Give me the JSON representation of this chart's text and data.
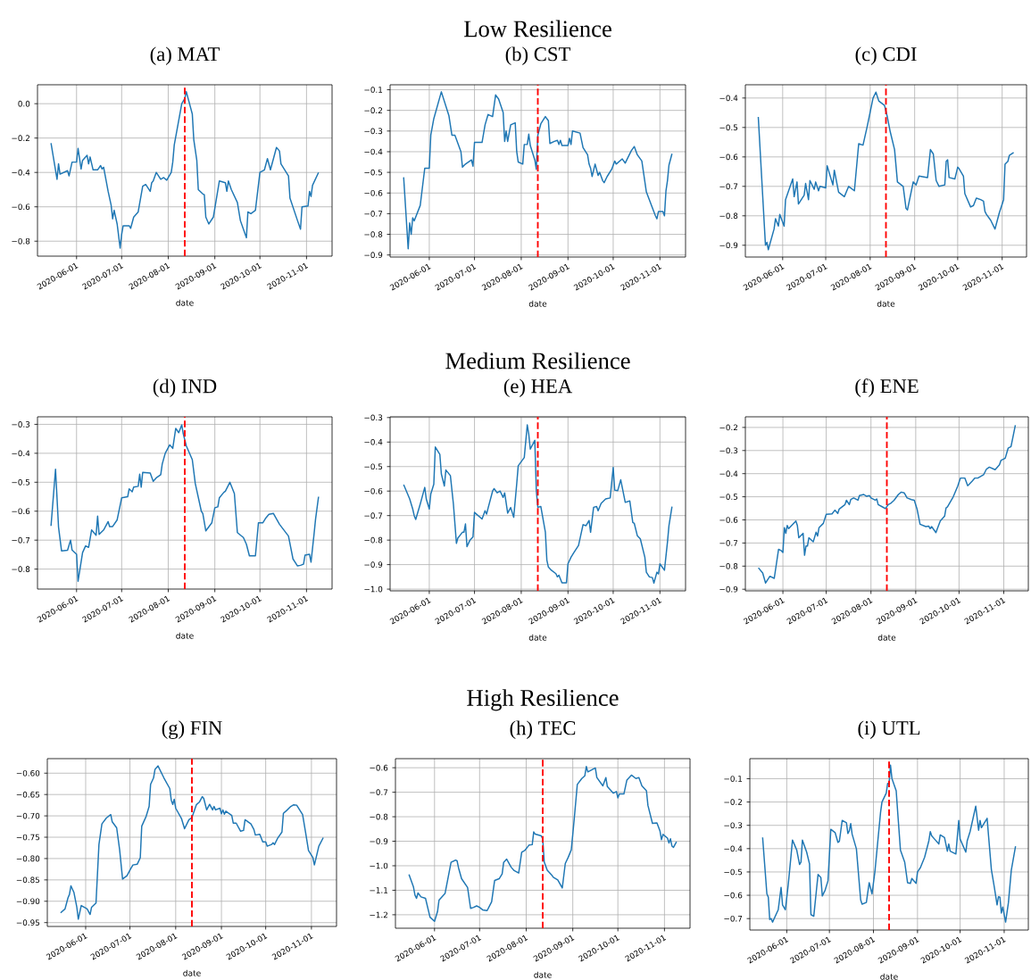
{
  "chart_data": [
    {
      "type": "line",
      "title": "(a) MAT",
      "xlabel": "date",
      "color": "#1f77b4",
      "grid": true,
      "xlim": [
        "2020-05-06",
        "2020-11-18"
      ],
      "ylim": [
        -0.887,
        0.11
      ],
      "xticks": [
        "2020-06-01",
        "2020-07-01",
        "2020-08-01",
        "2020-09-01",
        "2020-10-01",
        "2020-11-01"
      ],
      "yticks": [
        {
          "value": -0.8,
          "label": "−0.8"
        },
        {
          "value": -0.6,
          "label": "−0.6"
        },
        {
          "value": -0.4,
          "label": "−0.4"
        },
        {
          "value": -0.2,
          "label": "−0.2"
        },
        {
          "value": 0.0,
          "label": "0.0"
        }
      ],
      "ref_lines": [
        {
          "axis": "x",
          "value": "2020-08-12",
          "color": "#ff0000",
          "line_style": "dashed"
        }
      ],
      "x": [
        "2020-05-15",
        "2020-05-19",
        "2020-05-20",
        "2020-05-21",
        "2020-05-26",
        "2020-05-27",
        "2020-05-29",
        "2020-06-01",
        "2020-06-02",
        "2020-06-04",
        "2020-06-05",
        "2020-06-08",
        "2020-06-09",
        "2020-06-10",
        "2020-06-12",
        "2020-06-15",
        "2020-06-17",
        "2020-06-18",
        "2020-06-19",
        "2020-06-22",
        "2020-06-24",
        "2020-06-25",
        "2020-06-26",
        "2020-06-28",
        "2020-06-30",
        "2020-07-01",
        "2020-07-02",
        "2020-07-06",
        "2020-07-07",
        "2020-07-09",
        "2020-07-12",
        "2020-07-15",
        "2020-07-17",
        "2020-07-20",
        "2020-07-21",
        "2020-07-22",
        "2020-07-24",
        "2020-07-27",
        "2020-07-29",
        "2020-07-31",
        "2020-08-03",
        "2020-08-04",
        "2020-08-05",
        "2020-08-10",
        "2020-08-12",
        "2020-08-13",
        "2020-08-17",
        "2020-08-18",
        "2020-08-20",
        "2020-08-21",
        "2020-08-24",
        "2020-08-25",
        "2020-08-26",
        "2020-08-28",
        "2020-08-31",
        "2020-09-04",
        "2020-09-08",
        "2020-09-09",
        "2020-09-10",
        "2020-09-12",
        "2020-09-16",
        "2020-09-18",
        "2020-09-22",
        "2020-09-23",
        "2020-09-25",
        "2020-09-28",
        "2020-10-01",
        "2020-10-04",
        "2020-10-06",
        "2020-10-08",
        "2020-10-12",
        "2020-10-14",
        "2020-10-15",
        "2020-10-20",
        "2020-10-21",
        "2020-10-26",
        "2020-10-28",
        "2020-10-29",
        "2020-11-02",
        "2020-11-03",
        "2020-11-04",
        "2020-11-05",
        "2020-11-09"
      ],
      "values": [
        -0.23,
        -0.44,
        -0.35,
        -0.41,
        -0.39,
        -0.42,
        -0.34,
        -0.34,
        -0.26,
        -0.38,
        -0.33,
        -0.3,
        -0.35,
        -0.31,
        -0.385,
        -0.385,
        -0.36,
        -0.38,
        -0.37,
        -0.51,
        -0.59,
        -0.67,
        -0.62,
        -0.7,
        -0.84,
        -0.76,
        -0.71,
        -0.71,
        -0.725,
        -0.66,
        -0.63,
        -0.48,
        -0.47,
        -0.51,
        -0.46,
        -0.45,
        -0.4,
        -0.44,
        -0.43,
        -0.445,
        -0.4,
        -0.34,
        -0.24,
        0.0,
        0.03,
        0.07,
        -0.06,
        -0.21,
        -0.33,
        -0.5,
        -0.525,
        -0.53,
        -0.66,
        -0.7,
        -0.66,
        -0.45,
        -0.46,
        -0.51,
        -0.45,
        -0.5,
        -0.575,
        -0.68,
        -0.78,
        -0.63,
        -0.64,
        -0.62,
        -0.4,
        -0.385,
        -0.32,
        -0.385,
        -0.255,
        -0.275,
        -0.35,
        -0.42,
        -0.55,
        -0.68,
        -0.73,
        -0.6,
        -0.595,
        -0.51,
        -0.54,
        -0.475,
        -0.4
      ]
    },
    {
      "type": "line",
      "title": "(b) CST",
      "xlabel": "date",
      "color": "#1f77b4",
      "grid": true,
      "annotations": [
        "Low Resilience"
      ],
      "xlim": [
        "2020-05-06",
        "2020-11-18"
      ],
      "ylim": [
        -0.91,
        -0.076
      ],
      "xticks": [
        "2020-06-01",
        "2020-07-01",
        "2020-08-01",
        "2020-09-01",
        "2020-10-01",
        "2020-11-01"
      ],
      "yticks": [
        {
          "value": -0.9,
          "label": "−0.9"
        },
        {
          "value": -0.8,
          "label": "−0.8"
        },
        {
          "value": -0.7,
          "label": "−0.7"
        },
        {
          "value": -0.6,
          "label": "−0.6"
        },
        {
          "value": -0.5,
          "label": "−0.5"
        },
        {
          "value": -0.4,
          "label": "−0.4"
        },
        {
          "value": -0.3,
          "label": "−0.3"
        },
        {
          "value": -0.2,
          "label": "−0.2"
        },
        {
          "value": -0.1,
          "label": "−0.1"
        }
      ],
      "ref_lines": [
        {
          "axis": "x",
          "value": "2020-08-12",
          "color": "#ff0000",
          "line_style": "dashed"
        }
      ],
      "x": [
        "2020-05-15",
        "2020-05-18",
        "2020-05-19",
        "2020-05-20",
        "2020-05-21",
        "2020-05-22",
        "2020-05-26",
        "2020-05-29",
        "2020-06-01",
        "2020-06-02",
        "2020-06-04",
        "2020-06-09",
        "2020-06-14",
        "2020-06-16",
        "2020-06-18",
        "2020-06-22",
        "2020-06-23",
        "2020-06-25",
        "2020-06-29",
        "2020-06-30",
        "2020-07-01",
        "2020-07-06",
        "2020-07-08",
        "2020-07-10",
        "2020-07-13",
        "2020-07-15",
        "2020-07-17",
        "2020-07-20",
        "2020-07-21",
        "2020-07-22",
        "2020-07-23",
        "2020-07-25",
        "2020-07-28",
        "2020-07-29",
        "2020-07-30",
        "2020-08-02",
        "2020-08-03",
        "2020-08-05",
        "2020-08-06",
        "2020-08-07",
        "2020-08-10",
        "2020-08-11",
        "2020-08-12",
        "2020-08-14",
        "2020-08-17",
        "2020-08-19",
        "2020-08-20",
        "2020-08-23",
        "2020-08-25",
        "2020-08-26",
        "2020-08-27",
        "2020-08-28",
        "2020-09-01",
        "2020-09-02",
        "2020-09-03",
        "2020-09-04",
        "2020-09-09",
        "2020-09-11",
        "2020-09-14",
        "2020-09-15",
        "2020-09-16",
        "2020-09-17",
        "2020-09-19",
        "2020-09-21",
        "2020-09-22",
        "2020-09-24",
        "2020-09-25",
        "2020-09-27",
        "2020-09-30",
        "2020-10-02",
        "2020-10-03",
        "2020-10-07",
        "2020-10-09",
        "2020-10-13",
        "2020-10-15",
        "2020-10-17",
        "2020-10-20",
        "2020-10-23",
        "2020-10-29",
        "2020-10-30",
        "2020-10-31",
        "2020-11-03",
        "2020-11-04",
        "2020-11-05",
        "2020-11-06",
        "2020-11-07",
        "2020-11-09"
      ],
      "values": [
        -0.524,
        -0.87,
        -0.745,
        -0.8,
        -0.72,
        -0.735,
        -0.66,
        -0.48,
        -0.48,
        -0.32,
        -0.24,
        -0.11,
        -0.225,
        -0.32,
        -0.32,
        -0.4,
        -0.475,
        -0.46,
        -0.44,
        -0.47,
        -0.355,
        -0.355,
        -0.27,
        -0.22,
        -0.23,
        -0.125,
        -0.145,
        -0.21,
        -0.35,
        -0.3,
        -0.35,
        -0.27,
        -0.26,
        -0.4,
        -0.45,
        -0.46,
        -0.365,
        -0.365,
        -0.315,
        -0.37,
        -0.44,
        -0.485,
        -0.32,
        -0.265,
        -0.23,
        -0.25,
        -0.36,
        -0.35,
        -0.345,
        -0.365,
        -0.345,
        -0.37,
        -0.37,
        -0.335,
        -0.365,
        -0.3,
        -0.31,
        -0.38,
        -0.415,
        -0.46,
        -0.48,
        -0.52,
        -0.46,
        -0.515,
        -0.5,
        -0.54,
        -0.55,
        -0.52,
        -0.485,
        -0.445,
        -0.46,
        -0.435,
        -0.455,
        -0.395,
        -0.375,
        -0.415,
        -0.445,
        -0.595,
        -0.71,
        -0.725,
        -0.69,
        -0.69,
        -0.71,
        -0.59,
        -0.54,
        -0.465,
        -0.41
      ]
    },
    {
      "type": "line",
      "title": "(c) CDI",
      "xlabel": "date",
      "color": "#1f77b4",
      "grid": true,
      "xlim": [
        "2020-05-06",
        "2020-11-18"
      ],
      "ylim": [
        -0.94,
        -0.355
      ],
      "xticks": [
        "2020-06-01",
        "2020-07-01",
        "2020-08-01",
        "2020-09-01",
        "2020-10-01",
        "2020-11-01"
      ],
      "yticks": [
        {
          "value": -0.9,
          "label": "−0.9"
        },
        {
          "value": -0.8,
          "label": "−0.8"
        },
        {
          "value": -0.7,
          "label": "−0.7"
        },
        {
          "value": -0.6,
          "label": "−0.6"
        },
        {
          "value": -0.5,
          "label": "−0.5"
        },
        {
          "value": -0.4,
          "label": "−0.4"
        }
      ],
      "ref_lines": [
        {
          "axis": "x",
          "value": "2020-08-12",
          "color": "#ff0000",
          "line_style": "dashed"
        }
      ],
      "x": [
        "2020-05-15",
        "2020-05-20",
        "2020-05-21",
        "2020-05-22",
        "2020-05-26",
        "2020-05-27",
        "2020-05-29",
        "2020-05-30",
        "2020-06-02",
        "2020-06-03",
        "2020-06-08",
        "2020-06-09",
        "2020-06-11",
        "2020-06-12",
        "2020-06-16",
        "2020-06-17",
        "2020-06-19",
        "2020-06-20",
        "2020-06-23",
        "2020-06-24",
        "2020-06-26",
        "2020-06-27",
        "2020-07-01",
        "2020-07-02",
        "2020-07-06",
        "2020-07-07",
        "2020-07-10",
        "2020-07-14",
        "2020-07-17",
        "2020-07-21",
        "2020-07-24",
        "2020-07-27",
        "2020-07-30",
        "2020-08-03",
        "2020-08-05",
        "2020-08-07",
        "2020-08-11",
        "2020-08-13",
        "2020-08-15",
        "2020-08-18",
        "2020-08-20",
        "2020-08-24",
        "2020-08-26",
        "2020-08-27",
        "2020-08-31",
        "2020-09-02",
        "2020-09-04",
        "2020-09-10",
        "2020-09-12",
        "2020-09-14",
        "2020-09-16",
        "2020-09-18",
        "2020-09-22",
        "2020-09-23",
        "2020-09-24",
        "2020-09-25",
        "2020-09-29",
        "2020-10-01",
        "2020-10-02",
        "2020-10-05",
        "2020-10-06",
        "2020-10-10",
        "2020-10-12",
        "2020-10-14",
        "2020-10-17",
        "2020-10-19",
        "2020-10-20",
        "2020-10-21",
        "2020-10-24",
        "2020-10-27",
        "2020-10-30",
        "2020-11-02",
        "2020-11-03",
        "2020-11-05",
        "2020-11-06",
        "2020-11-09"
      ],
      "values": [
        -0.464,
        -0.9,
        -0.89,
        -0.915,
        -0.845,
        -0.81,
        -0.835,
        -0.795,
        -0.835,
        -0.745,
        -0.675,
        -0.735,
        -0.685,
        -0.76,
        -0.73,
        -0.69,
        -0.745,
        -0.68,
        -0.71,
        -0.685,
        -0.715,
        -0.7,
        -0.705,
        -0.63,
        -0.695,
        -0.645,
        -0.72,
        -0.735,
        -0.7,
        -0.715,
        -0.555,
        -0.56,
        -0.495,
        -0.4,
        -0.38,
        -0.41,
        -0.425,
        -0.465,
        -0.515,
        -0.575,
        -0.685,
        -0.7,
        -0.775,
        -0.78,
        -0.685,
        -0.695,
        -0.665,
        -0.67,
        -0.575,
        -0.59,
        -0.68,
        -0.7,
        -0.695,
        -0.615,
        -0.61,
        -0.67,
        -0.675,
        -0.635,
        -0.64,
        -0.665,
        -0.725,
        -0.77,
        -0.765,
        -0.74,
        -0.745,
        -0.75,
        -0.785,
        -0.795,
        -0.815,
        -0.845,
        -0.79,
        -0.745,
        -0.625,
        -0.615,
        -0.595,
        -0.585
      ]
    },
    {
      "type": "line",
      "title": "(d) IND",
      "xlabel": "date",
      "color": "#1f77b4",
      "grid": true,
      "xlim": [
        "2020-05-06",
        "2020-11-18"
      ],
      "ylim": [
        -0.869,
        -0.274
      ],
      "xticks": [
        "2020-06-01",
        "2020-07-01",
        "2020-08-01",
        "2020-09-01",
        "2020-10-01",
        "2020-11-01"
      ],
      "yticks": [
        {
          "value": -0.8,
          "label": "−0.8"
        },
        {
          "value": -0.7,
          "label": "−0.7"
        },
        {
          "value": -0.6,
          "label": "−0.6"
        },
        {
          "value": -0.5,
          "label": "−0.5"
        },
        {
          "value": -0.4,
          "label": "−0.4"
        },
        {
          "value": -0.3,
          "label": "−0.3"
        }
      ],
      "ref_lines": [
        {
          "axis": "x",
          "value": "2020-08-12",
          "color": "#ff0000",
          "line_style": "dashed"
        }
      ],
      "x": [
        "2020-05-15",
        "2020-05-18",
        "2020-05-20",
        "2020-05-22",
        "2020-05-26",
        "2020-05-28",
        "2020-05-29",
        "2020-06-01",
        "2020-06-02",
        "2020-06-05",
        "2020-06-07",
        "2020-06-09",
        "2020-06-11",
        "2020-06-14",
        "2020-06-15",
        "2020-06-16",
        "2020-06-19",
        "2020-06-22",
        "2020-06-23",
        "2020-06-25",
        "2020-06-28",
        "2020-07-01",
        "2020-07-05",
        "2020-07-06",
        "2020-07-08",
        "2020-07-09",
        "2020-07-12",
        "2020-07-13",
        "2020-07-14",
        "2020-07-15",
        "2020-07-20",
        "2020-07-22",
        "2020-07-24",
        "2020-07-27",
        "2020-07-28",
        "2020-07-30",
        "2020-08-02",
        "2020-08-04",
        "2020-08-06",
        "2020-08-08",
        "2020-08-10",
        "2020-08-11",
        "2020-08-13",
        "2020-08-17",
        "2020-08-19",
        "2020-08-23",
        "2020-08-24",
        "2020-08-26",
        "2020-08-30",
        "2020-09-01",
        "2020-09-03",
        "2020-09-04",
        "2020-09-07",
        "2020-09-08",
        "2020-09-11",
        "2020-09-14",
        "2020-09-16",
        "2020-09-20",
        "2020-09-22",
        "2020-09-24",
        "2020-09-28",
        "2020-09-30",
        "2020-10-03",
        "2020-10-05",
        "2020-10-07",
        "2020-10-10",
        "2020-10-14",
        "2020-10-20",
        "2020-10-23",
        "2020-10-26",
        "2020-10-28",
        "2020-10-30",
        "2020-10-31",
        "2020-11-03",
        "2020-11-04",
        "2020-11-06",
        "2020-11-07",
        "2020-11-09"
      ],
      "values": [
        -0.651,
        -0.455,
        -0.655,
        -0.737,
        -0.735,
        -0.7,
        -0.734,
        -0.749,
        -0.842,
        -0.743,
        -0.72,
        -0.725,
        -0.665,
        -0.683,
        -0.617,
        -0.68,
        -0.665,
        -0.636,
        -0.653,
        -0.653,
        -0.63,
        -0.554,
        -0.55,
        -0.523,
        -0.533,
        -0.517,
        -0.514,
        -0.472,
        -0.517,
        -0.466,
        -0.468,
        -0.497,
        -0.485,
        -0.474,
        -0.437,
        -0.4,
        -0.371,
        -0.383,
        -0.314,
        -0.329,
        -0.302,
        -0.333,
        -0.374,
        -0.422,
        -0.505,
        -0.6,
        -0.608,
        -0.668,
        -0.64,
        -0.588,
        -0.585,
        -0.554,
        -0.535,
        -0.531,
        -0.5,
        -0.539,
        -0.674,
        -0.691,
        -0.714,
        -0.754,
        -0.754,
        -0.64,
        -0.64,
        -0.623,
        -0.611,
        -0.608,
        -0.645,
        -0.686,
        -0.765,
        -0.789,
        -0.787,
        -0.783,
        -0.752,
        -0.749,
        -0.776,
        -0.68,
        -0.628,
        -0.55
      ]
    },
    {
      "type": "line",
      "title": "(e) HEA",
      "xlabel": "date",
      "color": "#1f77b4",
      "grid": true,
      "annotations": [
        "Medium Resilience"
      ],
      "xlim": [
        "2020-05-06",
        "2020-11-18"
      ],
      "ylim": [
        -1.007,
        -0.297
      ],
      "xticks": [
        "2020-06-01",
        "2020-07-01",
        "2020-08-01",
        "2020-09-01",
        "2020-10-01",
        "2020-11-01"
      ],
      "yticks": [
        {
          "value": -1.0,
          "label": "−1.0"
        },
        {
          "value": -0.9,
          "label": "−0.9"
        },
        {
          "value": -0.8,
          "label": "−0.8"
        },
        {
          "value": -0.7,
          "label": "−0.7"
        },
        {
          "value": -0.6,
          "label": "−0.6"
        },
        {
          "value": -0.5,
          "label": "−0.5"
        },
        {
          "value": -0.4,
          "label": "−0.4"
        },
        {
          "value": -0.3,
          "label": "−0.3"
        }
      ],
      "ref_lines": [
        {
          "axis": "x",
          "value": "2020-08-12",
          "color": "#ff0000",
          "line_style": "dashed"
        }
      ],
      "x": [
        "2020-05-15",
        "2020-05-19",
        "2020-05-21",
        "2020-05-22",
        "2020-05-23",
        "2020-05-26",
        "2020-05-29",
        "2020-05-30",
        "2020-06-01",
        "2020-06-02",
        "2020-06-04",
        "2020-06-05",
        "2020-06-08",
        "2020-06-09",
        "2020-06-11",
        "2020-06-12",
        "2020-06-15",
        "2020-06-17",
        "2020-06-19",
        "2020-06-20",
        "2020-06-23",
        "2020-06-24",
        "2020-06-25",
        "2020-06-26",
        "2020-06-28",
        "2020-06-30",
        "2020-07-01",
        "2020-07-06",
        "2020-07-08",
        "2020-07-09",
        "2020-07-10",
        "2020-07-13",
        "2020-07-14",
        "2020-07-16",
        "2020-07-18",
        "2020-07-20",
        "2020-07-21",
        "2020-07-23",
        "2020-07-25",
        "2020-07-27",
        "2020-07-29",
        "2020-07-30",
        "2020-08-03",
        "2020-08-05",
        "2020-08-06",
        "2020-08-07",
        "2020-08-10",
        "2020-08-11",
        "2020-08-12",
        "2020-08-14",
        "2020-08-17",
        "2020-08-18",
        "2020-08-19",
        "2020-08-21",
        "2020-08-24",
        "2020-08-25",
        "2020-08-26",
        "2020-08-28",
        "2020-08-31",
        "2020-09-01",
        "2020-09-03",
        "2020-09-05",
        "2020-09-08",
        "2020-09-11",
        "2020-09-13",
        "2020-09-15",
        "2020-09-16",
        "2020-09-18",
        "2020-09-20",
        "2020-09-21",
        "2020-09-23",
        "2020-09-26",
        "2020-09-29",
        "2020-10-01",
        "2020-10-02",
        "2020-10-04",
        "2020-10-06",
        "2020-10-09",
        "2020-10-12",
        "2020-10-14",
        "2020-10-15",
        "2020-10-17",
        "2020-10-19",
        "2020-10-22",
        "2020-10-23",
        "2020-10-25",
        "2020-10-27",
        "2020-10-28",
        "2020-10-30",
        "2020-10-31",
        "2020-11-01",
        "2020-11-04",
        "2020-11-06",
        "2020-11-07",
        "2020-11-09"
      ],
      "values": [
        -0.574,
        -0.632,
        -0.673,
        -0.7,
        -0.716,
        -0.653,
        -0.585,
        -0.632,
        -0.673,
        -0.612,
        -0.572,
        -0.42,
        -0.45,
        -0.53,
        -0.579,
        -0.514,
        -0.537,
        -0.653,
        -0.813,
        -0.791,
        -0.768,
        -0.768,
        -0.734,
        -0.827,
        -0.8,
        -0.787,
        -0.687,
        -0.714,
        -0.68,
        -0.694,
        -0.67,
        -0.6,
        -0.59,
        -0.607,
        -0.6,
        -0.626,
        -0.607,
        -0.69,
        -0.667,
        -0.707,
        -0.571,
        -0.497,
        -0.463,
        -0.33,
        -0.368,
        -0.429,
        -0.393,
        -0.598,
        -0.666,
        -0.663,
        -0.767,
        -0.882,
        -0.91,
        -0.923,
        -0.937,
        -0.95,
        -0.943,
        -0.974,
        -0.974,
        -0.897,
        -0.87,
        -0.85,
        -0.822,
        -0.737,
        -0.741,
        -0.72,
        -0.768,
        -0.666,
        -0.663,
        -0.68,
        -0.65,
        -0.632,
        -0.628,
        -0.504,
        -0.596,
        -0.598,
        -0.554,
        -0.646,
        -0.64,
        -0.728,
        -0.732,
        -0.782,
        -0.795,
        -0.87,
        -0.931,
        -0.95,
        -0.953,
        -0.975,
        -0.931,
        -0.938,
        -0.897,
        -0.923,
        -0.808,
        -0.741,
        -0.663
      ]
    },
    {
      "type": "line",
      "title": "(f) ENE",
      "xlabel": "date",
      "color": "#1f77b4",
      "grid": true,
      "xlim": [
        "2020-05-06",
        "2020-11-18"
      ],
      "ylim": [
        -0.907,
        -0.154
      ],
      "xticks": [
        "2020-06-01",
        "2020-07-01",
        "2020-08-01",
        "2020-09-01",
        "2020-10-01",
        "2020-11-01"
      ],
      "yticks": [
        {
          "value": -0.9,
          "label": "−0.9"
        },
        {
          "value": -0.8,
          "label": "−0.8"
        },
        {
          "value": -0.7,
          "label": "−0.7"
        },
        {
          "value": -0.6,
          "label": "−0.6"
        },
        {
          "value": -0.5,
          "label": "−0.5"
        },
        {
          "value": -0.4,
          "label": "−0.4"
        },
        {
          "value": -0.3,
          "label": "−0.3"
        },
        {
          "value": -0.2,
          "label": "−0.2"
        }
      ],
      "ref_lines": [
        {
          "axis": "x",
          "value": "2020-08-12",
          "color": "#ff0000",
          "line_style": "dashed"
        }
      ],
      "x": [
        "2020-05-15",
        "2020-05-18",
        "2020-05-20",
        "2020-05-23",
        "2020-05-26",
        "2020-05-29",
        "2020-05-31",
        "2020-06-01",
        "2020-06-02",
        "2020-06-03",
        "2020-06-04",
        "2020-06-05",
        "2020-06-10",
        "2020-06-11",
        "2020-06-12",
        "2020-06-15",
        "2020-06-16",
        "2020-06-17",
        "2020-06-18",
        "2020-06-19",
        "2020-06-22",
        "2020-06-24",
        "2020-06-25",
        "2020-06-26",
        "2020-06-29",
        "2020-07-01",
        "2020-07-05",
        "2020-07-07",
        "2020-07-09",
        "2020-07-10",
        "2020-07-14",
        "2020-07-15",
        "2020-07-17",
        "2020-07-18",
        "2020-07-20",
        "2020-07-23",
        "2020-07-24",
        "2020-07-27",
        "2020-07-29",
        "2020-07-31",
        "2020-08-01",
        "2020-08-04",
        "2020-08-05",
        "2020-08-06",
        "2020-08-09",
        "2020-08-11",
        "2020-08-13",
        "2020-08-15",
        "2020-08-17",
        "2020-08-20",
        "2020-08-22",
        "2020-08-24",
        "2020-08-26",
        "2020-08-29",
        "2020-08-31",
        "2020-09-02",
        "2020-09-04",
        "2020-09-08",
        "2020-09-10",
        "2020-09-11",
        "2020-09-12",
        "2020-09-15",
        "2020-09-16",
        "2020-09-18",
        "2020-09-21",
        "2020-09-22",
        "2020-09-23",
        "2020-09-27",
        "2020-09-30",
        "2020-10-02",
        "2020-10-05",
        "2020-10-07",
        "2020-10-10",
        "2020-10-12",
        "2020-10-14",
        "2020-10-18",
        "2020-10-20",
        "2020-10-22",
        "2020-10-26",
        "2020-10-29",
        "2020-10-30",
        "2020-11-02",
        "2020-11-04",
        "2020-11-06",
        "2020-11-09"
      ],
      "values": [
        -0.807,
        -0.83,
        -0.873,
        -0.844,
        -0.853,
        -0.727,
        -0.734,
        -0.741,
        -0.634,
        -0.658,
        -0.624,
        -0.638,
        -0.605,
        -0.624,
        -0.677,
        -0.658,
        -0.753,
        -0.713,
        -0.713,
        -0.677,
        -0.695,
        -0.653,
        -0.67,
        -0.634,
        -0.615,
        -0.576,
        -0.574,
        -0.558,
        -0.572,
        -0.553,
        -0.534,
        -0.515,
        -0.534,
        -0.512,
        -0.505,
        -0.515,
        -0.495,
        -0.49,
        -0.498,
        -0.495,
        -0.505,
        -0.515,
        -0.509,
        -0.534,
        -0.544,
        -0.551,
        -0.534,
        -0.527,
        -0.515,
        -0.49,
        -0.48,
        -0.483,
        -0.505,
        -0.512,
        -0.515,
        -0.555,
        -0.619,
        -0.629,
        -0.627,
        -0.638,
        -0.629,
        -0.655,
        -0.638,
        -0.605,
        -0.584,
        -0.548,
        -0.544,
        -0.5,
        -0.455,
        -0.419,
        -0.419,
        -0.452,
        -0.433,
        -0.419,
        -0.419,
        -0.405,
        -0.38,
        -0.372,
        -0.383,
        -0.362,
        -0.343,
        -0.333,
        -0.29,
        -0.283,
        -0.19
      ]
    },
    {
      "type": "line",
      "title": "(g) FIN",
      "xlabel": "date",
      "color": "#1f77b4",
      "grid": true,
      "xlim": [
        "2020-05-06",
        "2020-11-18"
      ],
      "ylim": [
        -0.959,
        -0.566
      ],
      "xticks": [
        "2020-06-01",
        "2020-07-01",
        "2020-08-01",
        "2020-09-01",
        "2020-10-01",
        "2020-11-01"
      ],
      "yticks": [
        {
          "value": -0.95,
          "label": "−0.95"
        },
        {
          "value": -0.9,
          "label": "−0.90"
        },
        {
          "value": -0.85,
          "label": "−0.85"
        },
        {
          "value": -0.8,
          "label": "−0.80"
        },
        {
          "value": -0.75,
          "label": "−0.75"
        },
        {
          "value": -0.7,
          "label": "−0.70"
        },
        {
          "value": -0.65,
          "label": "−0.65"
        },
        {
          "value": -0.6,
          "label": "−0.60"
        }
      ],
      "ref_lines": [
        {
          "axis": "x",
          "value": "2020-08-12",
          "color": "#ff0000",
          "line_style": "dashed"
        }
      ],
      "x": [
        "2020-05-15",
        "2020-05-18",
        "2020-05-20",
        "2020-05-21",
        "2020-05-22",
        "2020-05-24",
        "2020-05-26",
        "2020-05-27",
        "2020-05-29",
        "2020-06-01",
        "2020-06-02",
        "2020-06-04",
        "2020-06-05",
        "2020-06-08",
        "2020-06-10",
        "2020-06-12",
        "2020-06-15",
        "2020-06-18",
        "2020-06-19",
        "2020-06-22",
        "2020-06-24",
        "2020-06-26",
        "2020-06-29",
        "2020-07-01",
        "2020-07-03",
        "2020-07-06",
        "2020-07-08",
        "2020-07-09",
        "2020-07-12",
        "2020-07-14",
        "2020-07-15",
        "2020-07-17",
        "2020-07-18",
        "2020-07-20",
        "2020-07-24",
        "2020-07-28",
        "2020-07-29",
        "2020-07-30",
        "2020-07-31",
        "2020-08-01",
        "2020-08-05",
        "2020-08-07",
        "2020-08-10",
        "2020-08-12",
        "2020-08-15",
        "2020-08-17",
        "2020-08-19",
        "2020-08-20",
        "2020-08-22",
        "2020-08-24",
        "2020-08-26",
        "2020-08-27",
        "2020-08-28",
        "2020-08-31",
        "2020-09-01",
        "2020-09-02",
        "2020-09-03",
        "2020-09-04",
        "2020-09-08",
        "2020-09-09",
        "2020-09-11",
        "2020-09-14",
        "2020-09-16",
        "2020-09-17",
        "2020-09-21",
        "2020-09-23",
        "2020-09-24",
        "2020-09-27",
        "2020-09-29",
        "2020-10-01",
        "2020-10-02",
        "2020-10-05",
        "2020-10-06",
        "2020-10-07",
        "2020-10-09",
        "2020-10-12",
        "2020-10-13",
        "2020-10-15",
        "2020-10-18",
        "2020-10-20",
        "2020-10-22",
        "2020-10-24",
        "2020-10-26",
        "2020-10-28",
        "2020-10-30",
        "2020-11-02",
        "2020-11-03",
        "2020-11-06",
        "2020-11-09"
      ],
      "values": [
        -0.927,
        -0.918,
        -0.892,
        -0.884,
        -0.864,
        -0.879,
        -0.914,
        -0.942,
        -0.91,
        -0.916,
        -0.918,
        -0.931,
        -0.914,
        -0.904,
        -0.767,
        -0.719,
        -0.705,
        -0.697,
        -0.714,
        -0.728,
        -0.779,
        -0.848,
        -0.84,
        -0.827,
        -0.815,
        -0.813,
        -0.798,
        -0.724,
        -0.701,
        -0.678,
        -0.626,
        -0.611,
        -0.591,
        -0.583,
        -0.611,
        -0.636,
        -0.663,
        -0.673,
        -0.661,
        -0.682,
        -0.707,
        -0.73,
        -0.709,
        -0.704,
        -0.674,
        -0.668,
        -0.655,
        -0.659,
        -0.686,
        -0.673,
        -0.686,
        -0.678,
        -0.686,
        -0.682,
        -0.695,
        -0.686,
        -0.696,
        -0.689,
        -0.699,
        -0.717,
        -0.717,
        -0.736,
        -0.734,
        -0.709,
        -0.719,
        -0.732,
        -0.745,
        -0.743,
        -0.761,
        -0.761,
        -0.771,
        -0.767,
        -0.763,
        -0.767,
        -0.753,
        -0.738,
        -0.694,
        -0.688,
        -0.678,
        -0.674,
        -0.675,
        -0.686,
        -0.697,
        -0.738,
        -0.781,
        -0.798,
        -0.815,
        -0.771,
        -0.751
      ]
    },
    {
      "type": "line",
      "title": "(h) TEC",
      "xlabel": "date",
      "color": "#1f77b4",
      "grid": true,
      "annotations": [
        "High Resilience"
      ],
      "xlim": [
        "2020-05-06",
        "2020-11-18"
      ],
      "ylim": [
        -1.255,
        -0.563
      ],
      "xticks": [
        "2020-06-01",
        "2020-07-01",
        "2020-08-01",
        "2020-09-01",
        "2020-10-01",
        "2020-11-01"
      ],
      "yticks": [
        {
          "value": -1.2,
          "label": "−1.2"
        },
        {
          "value": -1.1,
          "label": "−1.1"
        },
        {
          "value": -1.0,
          "label": "−1.0"
        },
        {
          "value": -0.9,
          "label": "−0.9"
        },
        {
          "value": -0.8,
          "label": "−0.8"
        },
        {
          "value": -0.7,
          "label": "−0.7"
        },
        {
          "value": -0.6,
          "label": "−0.6"
        }
      ],
      "ref_lines": [
        {
          "axis": "x",
          "value": "2020-08-12",
          "color": "#ff0000",
          "line_style": "dashed"
        }
      ],
      "x": [
        "2020-05-15",
        "2020-05-18",
        "2020-05-19",
        "2020-05-20",
        "2020-05-21",
        "2020-05-23",
        "2020-05-26",
        "2020-05-29",
        "2020-06-01",
        "2020-06-03",
        "2020-06-04",
        "2020-06-08",
        "2020-06-12",
        "2020-06-15",
        "2020-06-16",
        "2020-06-17",
        "2020-06-19",
        "2020-06-23",
        "2020-06-25",
        "2020-06-27",
        "2020-06-29",
        "2020-07-01",
        "2020-07-03",
        "2020-07-06",
        "2020-07-09",
        "2020-07-11",
        "2020-07-14",
        "2020-07-16",
        "2020-07-17",
        "2020-07-19",
        "2020-07-22",
        "2020-07-24",
        "2020-07-27",
        "2020-07-29",
        "2020-07-31",
        "2020-08-03",
        "2020-08-05",
        "2020-08-06",
        "2020-08-07",
        "2020-08-11",
        "2020-08-12",
        "2020-08-13",
        "2020-08-15",
        "2020-08-18",
        "2020-08-19",
        "2020-08-22",
        "2020-08-25",
        "2020-08-27",
        "2020-08-29",
        "2020-08-31",
        "2020-09-02",
        "2020-09-04",
        "2020-09-07",
        "2020-09-09",
        "2020-09-10",
        "2020-09-11",
        "2020-09-16",
        "2020-09-17",
        "2020-09-21",
        "2020-09-23",
        "2020-09-24",
        "2020-09-28",
        "2020-09-30",
        "2020-10-01",
        "2020-10-02",
        "2020-10-05",
        "2020-10-07",
        "2020-10-10",
        "2020-10-13",
        "2020-10-15",
        "2020-10-17",
        "2020-10-20",
        "2020-10-21",
        "2020-10-24",
        "2020-10-27",
        "2020-10-29",
        "2020-10-30",
        "2020-10-31",
        "2020-11-03",
        "2020-11-04",
        "2020-11-05",
        "2020-11-06",
        "2020-11-07",
        "2020-11-09"
      ],
      "values": [
        -1.036,
        -1.087,
        -1.12,
        -1.133,
        -1.111,
        -1.127,
        -1.133,
        -1.21,
        -1.227,
        -1.187,
        -1.14,
        -1.113,
        -0.986,
        -0.977,
        -0.98,
        -1.009,
        -1.053,
        -1.089,
        -1.174,
        -1.17,
        -1.164,
        -1.17,
        -1.18,
        -1.183,
        -1.147,
        -1.06,
        -1.053,
        -1.033,
        -0.986,
        -0.973,
        -1.006,
        -1.02,
        -1.03,
        -0.945,
        -0.938,
        -0.915,
        -0.914,
        -0.862,
        -0.871,
        -0.878,
        -0.891,
        -0.985,
        -1.018,
        -1.038,
        -1.047,
        -1.058,
        -1.091,
        -0.991,
        -0.965,
        -0.935,
        -0.806,
        -0.668,
        -0.644,
        -0.633,
        -0.595,
        -0.617,
        -0.601,
        -0.64,
        -0.674,
        -0.64,
        -0.677,
        -0.704,
        -0.697,
        -0.723,
        -0.707,
        -0.707,
        -0.65,
        -0.63,
        -0.644,
        -0.64,
        -0.674,
        -0.694,
        -0.754,
        -0.827,
        -0.825,
        -0.858,
        -0.894,
        -0.872,
        -0.887,
        -0.907,
        -0.89,
        -0.92,
        -0.925,
        -0.902
      ]
    },
    {
      "type": "line",
      "title": "(i) UTL",
      "xlabel": "date",
      "color": "#1f77b4",
      "grid": true,
      "xlim": [
        "2020-05-06",
        "2020-11-18"
      ],
      "ylim": [
        -0.749,
        -0.014
      ],
      "xticks": [
        "2020-06-01",
        "2020-07-01",
        "2020-08-01",
        "2020-09-01",
        "2020-10-01",
        "2020-11-01"
      ],
      "yticks": [
        {
          "value": -0.7,
          "label": "−0.7"
        },
        {
          "value": -0.6,
          "label": "−0.6"
        },
        {
          "value": -0.5,
          "label": "−0.5"
        },
        {
          "value": -0.4,
          "label": "−0.4"
        },
        {
          "value": -0.3,
          "label": "−0.3"
        },
        {
          "value": -0.2,
          "label": "−0.2"
        },
        {
          "value": -0.1,
          "label": "−0.1"
        }
      ],
      "ref_lines": [
        {
          "axis": "x",
          "value": "2020-08-12",
          "color": "#ff0000",
          "line_style": "dashed"
        }
      ],
      "x": [
        "2020-05-15",
        "2020-05-18",
        "2020-05-19",
        "2020-05-20",
        "2020-05-21",
        "2020-05-22",
        "2020-05-26",
        "2020-05-28",
        "2020-05-29",
        "2020-05-31",
        "2020-06-02",
        "2020-06-04",
        "2020-06-05",
        "2020-06-08",
        "2020-06-10",
        "2020-06-11",
        "2020-06-12",
        "2020-06-15",
        "2020-06-17",
        "2020-06-18",
        "2020-06-20",
        "2020-06-22",
        "2020-06-23",
        "2020-06-25",
        "2020-06-26",
        "2020-06-28",
        "2020-06-30",
        "2020-07-02",
        "2020-07-05",
        "2020-07-07",
        "2020-07-08",
        "2020-07-10",
        "2020-07-13",
        "2020-07-14",
        "2020-07-15",
        "2020-07-16",
        "2020-07-17",
        "2020-07-20",
        "2020-07-23",
        "2020-07-24",
        "2020-07-27",
        "2020-07-29",
        "2020-07-31",
        "2020-08-02",
        "2020-08-06",
        "2020-08-07",
        "2020-08-10",
        "2020-08-11",
        "2020-08-12",
        "2020-08-13",
        "2020-08-14",
        "2020-08-17",
        "2020-08-18",
        "2020-08-20",
        "2020-08-23",
        "2020-08-25",
        "2020-08-27",
        "2020-08-28",
        "2020-08-31",
        "2020-09-01",
        "2020-09-03",
        "2020-09-06",
        "2020-09-09",
        "2020-09-10",
        "2020-09-11",
        "2020-09-13",
        "2020-09-16",
        "2020-09-17",
        "2020-09-20",
        "2020-09-22",
        "2020-09-23",
        "2020-09-24",
        "2020-09-28",
        "2020-09-30",
        "2020-10-01",
        "2020-10-05",
        "2020-10-06",
        "2020-10-08",
        "2020-10-12",
        "2020-10-14",
        "2020-10-15",
        "2020-10-16",
        "2020-10-20",
        "2020-10-21",
        "2020-10-23",
        "2020-10-25",
        "2020-10-27",
        "2020-10-28",
        "2020-10-29",
        "2020-10-30",
        "2020-10-31",
        "2020-11-02",
        "2020-11-04",
        "2020-11-06",
        "2020-11-09"
      ],
      "values": [
        -0.352,
        -0.594,
        -0.608,
        -0.704,
        -0.7,
        -0.715,
        -0.662,
        -0.566,
        -0.641,
        -0.662,
        -0.556,
        -0.43,
        -0.363,
        -0.406,
        -0.468,
        -0.458,
        -0.363,
        -0.415,
        -0.465,
        -0.683,
        -0.69,
        -0.57,
        -0.511,
        -0.524,
        -0.603,
        -0.578,
        -0.538,
        -0.317,
        -0.331,
        -0.373,
        -0.369,
        -0.279,
        -0.289,
        -0.335,
        -0.324,
        -0.292,
        -0.338,
        -0.401,
        -0.62,
        -0.638,
        -0.631,
        -0.546,
        -0.594,
        -0.5,
        -0.244,
        -0.2,
        -0.162,
        -0.12,
        -0.12,
        -0.042,
        -0.099,
        -0.152,
        -0.239,
        -0.406,
        -0.458,
        -0.546,
        -0.549,
        -0.528,
        -0.549,
        -0.5,
        -0.482,
        -0.437,
        -0.366,
        -0.327,
        -0.345,
        -0.359,
        -0.38,
        -0.341,
        -0.352,
        -0.411,
        -0.38,
        -0.411,
        -0.423,
        -0.279,
        -0.359,
        -0.415,
        -0.366,
        -0.327,
        -0.218,
        -0.321,
        -0.279,
        -0.31,
        -0.27,
        -0.345,
        -0.49,
        -0.563,
        -0.641,
        -0.606,
        -0.608,
        -0.676,
        -0.65,
        -0.715,
        -0.631,
        -0.493,
        -0.39
      ]
    }
  ]
}
